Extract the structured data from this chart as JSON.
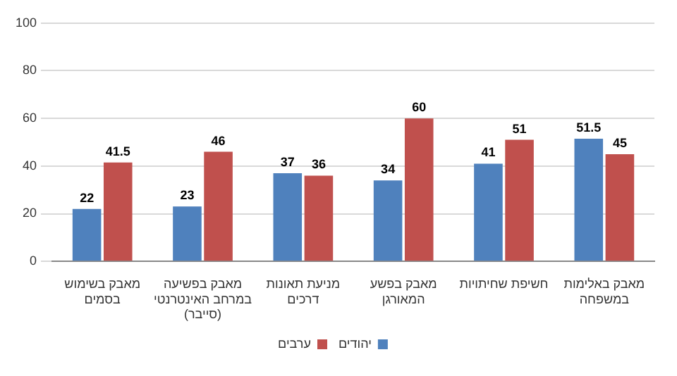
{
  "chart_data": {
    "type": "bar",
    "categories": [
      "מאבק בשימוש בסמים",
      "מאבק בפשיעה במרחב האינטרנטי (סייבר)",
      "מניעת תאונות דרכים",
      "מאבק בפשע המאורגן",
      "חשיפת שחיתויות",
      "מאבק באלימות במשפחה"
    ],
    "series": [
      {
        "name": "יהודים",
        "color": "#4f81bd",
        "values": [
          22,
          23,
          37,
          34,
          41,
          51.5
        ]
      },
      {
        "name": "ערבים",
        "color": "#c0504d",
        "values": [
          41.5,
          46,
          36,
          60,
          51,
          45
        ]
      }
    ],
    "ylim": [
      0,
      100
    ],
    "yticks": [
      0,
      20,
      40,
      60,
      80,
      100
    ],
    "grid": "y",
    "legend": "bottom",
    "data_labels": true
  }
}
